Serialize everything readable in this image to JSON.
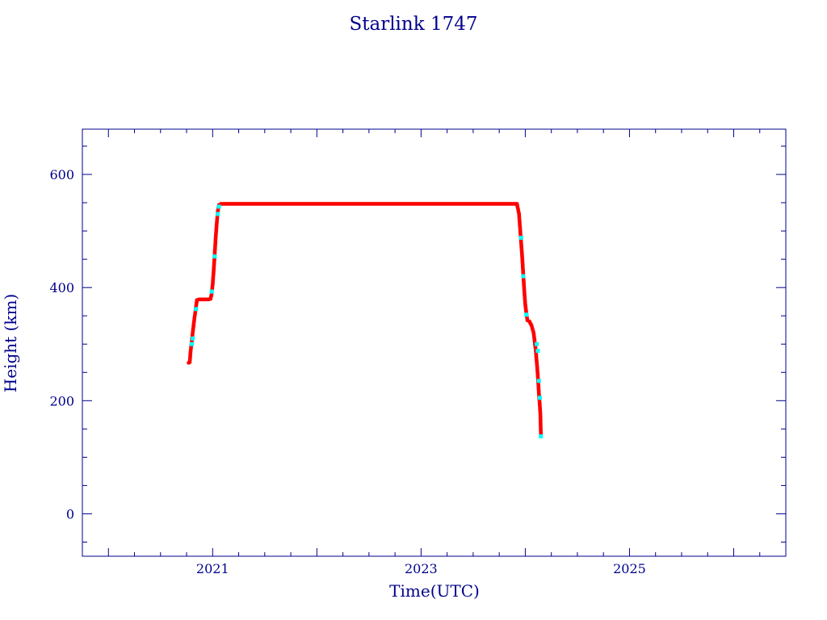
{
  "chart_data": {
    "type": "scatter",
    "title": "Starlink 1747",
    "xlabel": "Time(UTC)",
    "ylabel": "Height (km)",
    "xlim": [
      2019.75,
      2026.5
    ],
    "ylim": [
      -75,
      680
    ],
    "xticks": [
      2021,
      2023,
      2025
    ],
    "yticks": [
      0,
      200,
      400,
      600
    ],
    "grid": false,
    "colors": {
      "frame": "#00008b",
      "points": "#ff0000",
      "highlight": "#00ffff",
      "line": "#000000"
    },
    "points": [
      [
        2020.77,
        267
      ],
      [
        2020.78,
        268
      ],
      [
        2020.79,
        290
      ],
      [
        2020.8,
        305
      ],
      [
        2020.81,
        322
      ],
      [
        2020.82,
        338
      ],
      [
        2020.83,
        352
      ],
      [
        2020.84,
        366
      ],
      [
        2020.85,
        378
      ],
      [
        2020.87,
        379
      ],
      [
        2020.9,
        379
      ],
      [
        2020.93,
        379
      ],
      [
        2020.96,
        379
      ],
      [
        2020.98,
        380
      ],
      [
        2020.99,
        388
      ],
      [
        2021.0,
        405
      ],
      [
        2021.01,
        430
      ],
      [
        2021.02,
        460
      ],
      [
        2021.03,
        490
      ],
      [
        2021.04,
        515
      ],
      [
        2021.05,
        535
      ],
      [
        2021.06,
        546
      ],
      [
        2021.08,
        548
      ],
      [
        2021.15,
        548
      ],
      [
        2021.25,
        548
      ],
      [
        2021.35,
        548
      ],
      [
        2021.45,
        548
      ],
      [
        2021.55,
        548
      ],
      [
        2021.65,
        548
      ],
      [
        2021.75,
        548
      ],
      [
        2021.85,
        548
      ],
      [
        2021.95,
        548
      ],
      [
        2022.05,
        548
      ],
      [
        2022.15,
        548
      ],
      [
        2022.25,
        548
      ],
      [
        2022.35,
        548
      ],
      [
        2022.45,
        548
      ],
      [
        2022.55,
        548
      ],
      [
        2022.65,
        548
      ],
      [
        2022.75,
        548
      ],
      [
        2022.85,
        548
      ],
      [
        2022.95,
        548
      ],
      [
        2023.05,
        548
      ],
      [
        2023.15,
        548
      ],
      [
        2023.25,
        548
      ],
      [
        2023.35,
        548
      ],
      [
        2023.45,
        548
      ],
      [
        2023.55,
        548
      ],
      [
        2023.65,
        548
      ],
      [
        2023.75,
        548
      ],
      [
        2023.85,
        548
      ],
      [
        2023.92,
        548
      ],
      [
        2023.94,
        530
      ],
      [
        2023.95,
        505
      ],
      [
        2023.96,
        480
      ],
      [
        2023.97,
        455
      ],
      [
        2023.98,
        425
      ],
      [
        2023.99,
        395
      ],
      [
        2024.0,
        370
      ],
      [
        2024.01,
        355
      ],
      [
        2024.02,
        342
      ],
      [
        2024.04,
        340
      ],
      [
        2024.06,
        333
      ],
      [
        2024.08,
        320
      ],
      [
        2024.09,
        305
      ],
      [
        2024.1,
        290
      ],
      [
        2024.11,
        268
      ],
      [
        2024.12,
        245
      ],
      [
        2024.13,
        215
      ],
      [
        2024.14,
        190
      ],
      [
        2024.145,
        175
      ],
      [
        2024.15,
        137
      ]
    ],
    "highlight_points": [
      [
        2020.8,
        300
      ],
      [
        2020.81,
        310
      ],
      [
        2020.84,
        362
      ],
      [
        2020.99,
        393
      ],
      [
        2021.02,
        455
      ],
      [
        2021.05,
        530
      ],
      [
        2021.06,
        543
      ],
      [
        2023.96,
        488
      ],
      [
        2023.98,
        420
      ],
      [
        2024.01,
        352
      ],
      [
        2024.11,
        300
      ],
      [
        2024.12,
        288
      ],
      [
        2024.13,
        235
      ],
      [
        2024.14,
        205
      ],
      [
        2024.15,
        137
      ]
    ]
  }
}
